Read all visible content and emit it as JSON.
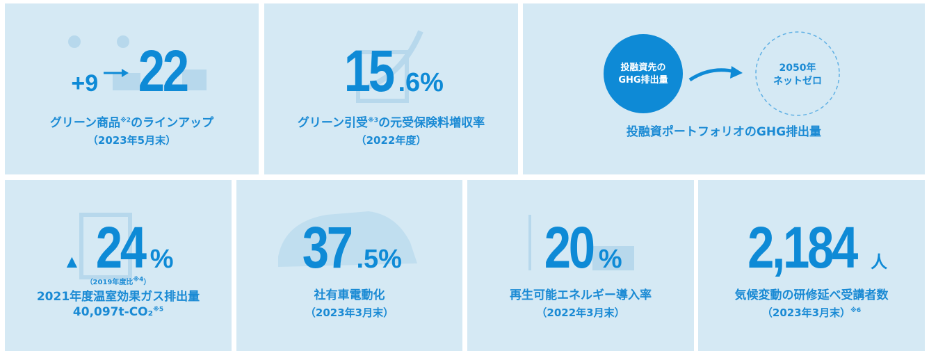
{
  "tiles": [
    {
      "prefix": "+9",
      "value": "22",
      "caption": {
        "text": "グリーン商品",
        "note": "※2",
        "after": "のラインアップ"
      },
      "sub": "（2023年5月末）"
    },
    {
      "value": "15",
      "decimal": ".6",
      "unit": "%",
      "caption": {
        "text": "グリーン引受",
        "note": "※3",
        "after": "の元受保険料増収率"
      },
      "sub": "（2022年度）"
    },
    {
      "from": [
        "投融資先の",
        "GHG排出量"
      ],
      "to": [
        "2050年",
        "ネットゼロ"
      ],
      "caption": "投融資ポートフォリオのGHG排出量"
    },
    {
      "prefix": "▲",
      "value": "24",
      "unit": "%",
      "basis": {
        "text": "（2019年度比",
        "note": "※4",
        "after": "）"
      },
      "caption": "2021年度温室効果ガス排出量",
      "sub": {
        "text": "40,097t-CO₂",
        "note": "※5"
      }
    },
    {
      "value": "37",
      "decimal": ".5",
      "unit": "%",
      "caption": "社有車電動化",
      "sub": "（2023年3月末）"
    },
    {
      "value": "20",
      "unit": "%",
      "caption": "再生可能エネルギー導入率",
      "sub": "（2022年3月末）"
    },
    {
      "value": "2,184",
      "unit": "人",
      "caption": "気候変動の研修延べ受講者数",
      "sub": {
        "text": "（2023年3月末）",
        "note": "※6"
      }
    }
  ]
}
